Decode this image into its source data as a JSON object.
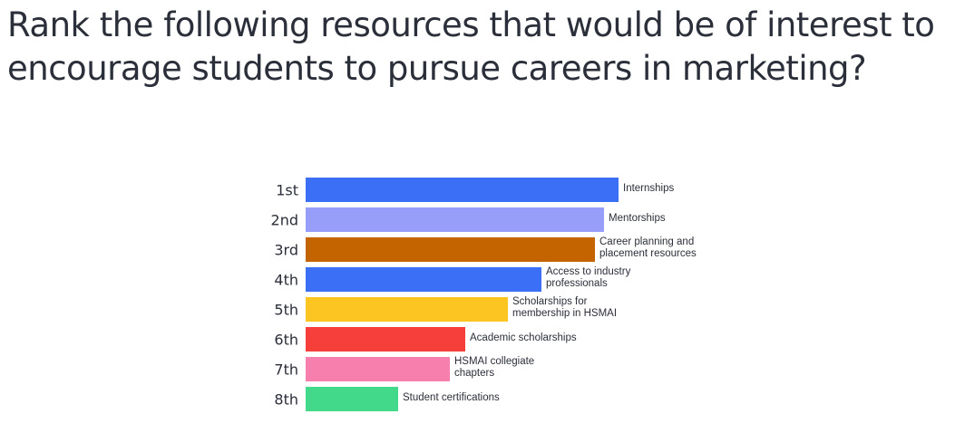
{
  "question": {
    "title": "Rank the following resources that would be of interest to encourage students to pursue careers in marketing?"
  },
  "chart_data": {
    "type": "bar",
    "orientation": "horizontal",
    "title": "",
    "xlabel": "",
    "ylabel": "",
    "grid": false,
    "categories": [
      "1st",
      "2nd",
      "3rd",
      "4th",
      "5th",
      "6th",
      "7th",
      "8th"
    ],
    "items": [
      {
        "rank": "1st",
        "label": [
          "Internships"
        ],
        "value": 1.0,
        "color": "#3b6ff5"
      },
      {
        "rank": "2nd",
        "label": [
          "Mentorships"
        ],
        "value": 0.955,
        "color": "#979ef9"
      },
      {
        "rank": "3rd",
        "label": [
          "Career planning and",
          "placement resources"
        ],
        "value": 0.924,
        "color": "#c36400"
      },
      {
        "rank": "4th",
        "label": [
          "Access to industry",
          "professionals"
        ],
        "value": 0.753,
        "color": "#3b6ff5"
      },
      {
        "rank": "5th",
        "label": [
          "Scholarships for",
          "membership in HSMAI"
        ],
        "value": 0.646,
        "color": "#fcc521"
      },
      {
        "rank": "6th",
        "label": [
          "Academic scholarships"
        ],
        "value": 0.51,
        "color": "#f63f3a"
      },
      {
        "rank": "7th",
        "label": [
          "HSMAI collegiate",
          "chapters"
        ],
        "value": 0.461,
        "color": "#f77fae"
      },
      {
        "rank": "8th",
        "label": [
          "Student certifications"
        ],
        "value": 0.296,
        "color": "#42d98b"
      }
    ]
  }
}
